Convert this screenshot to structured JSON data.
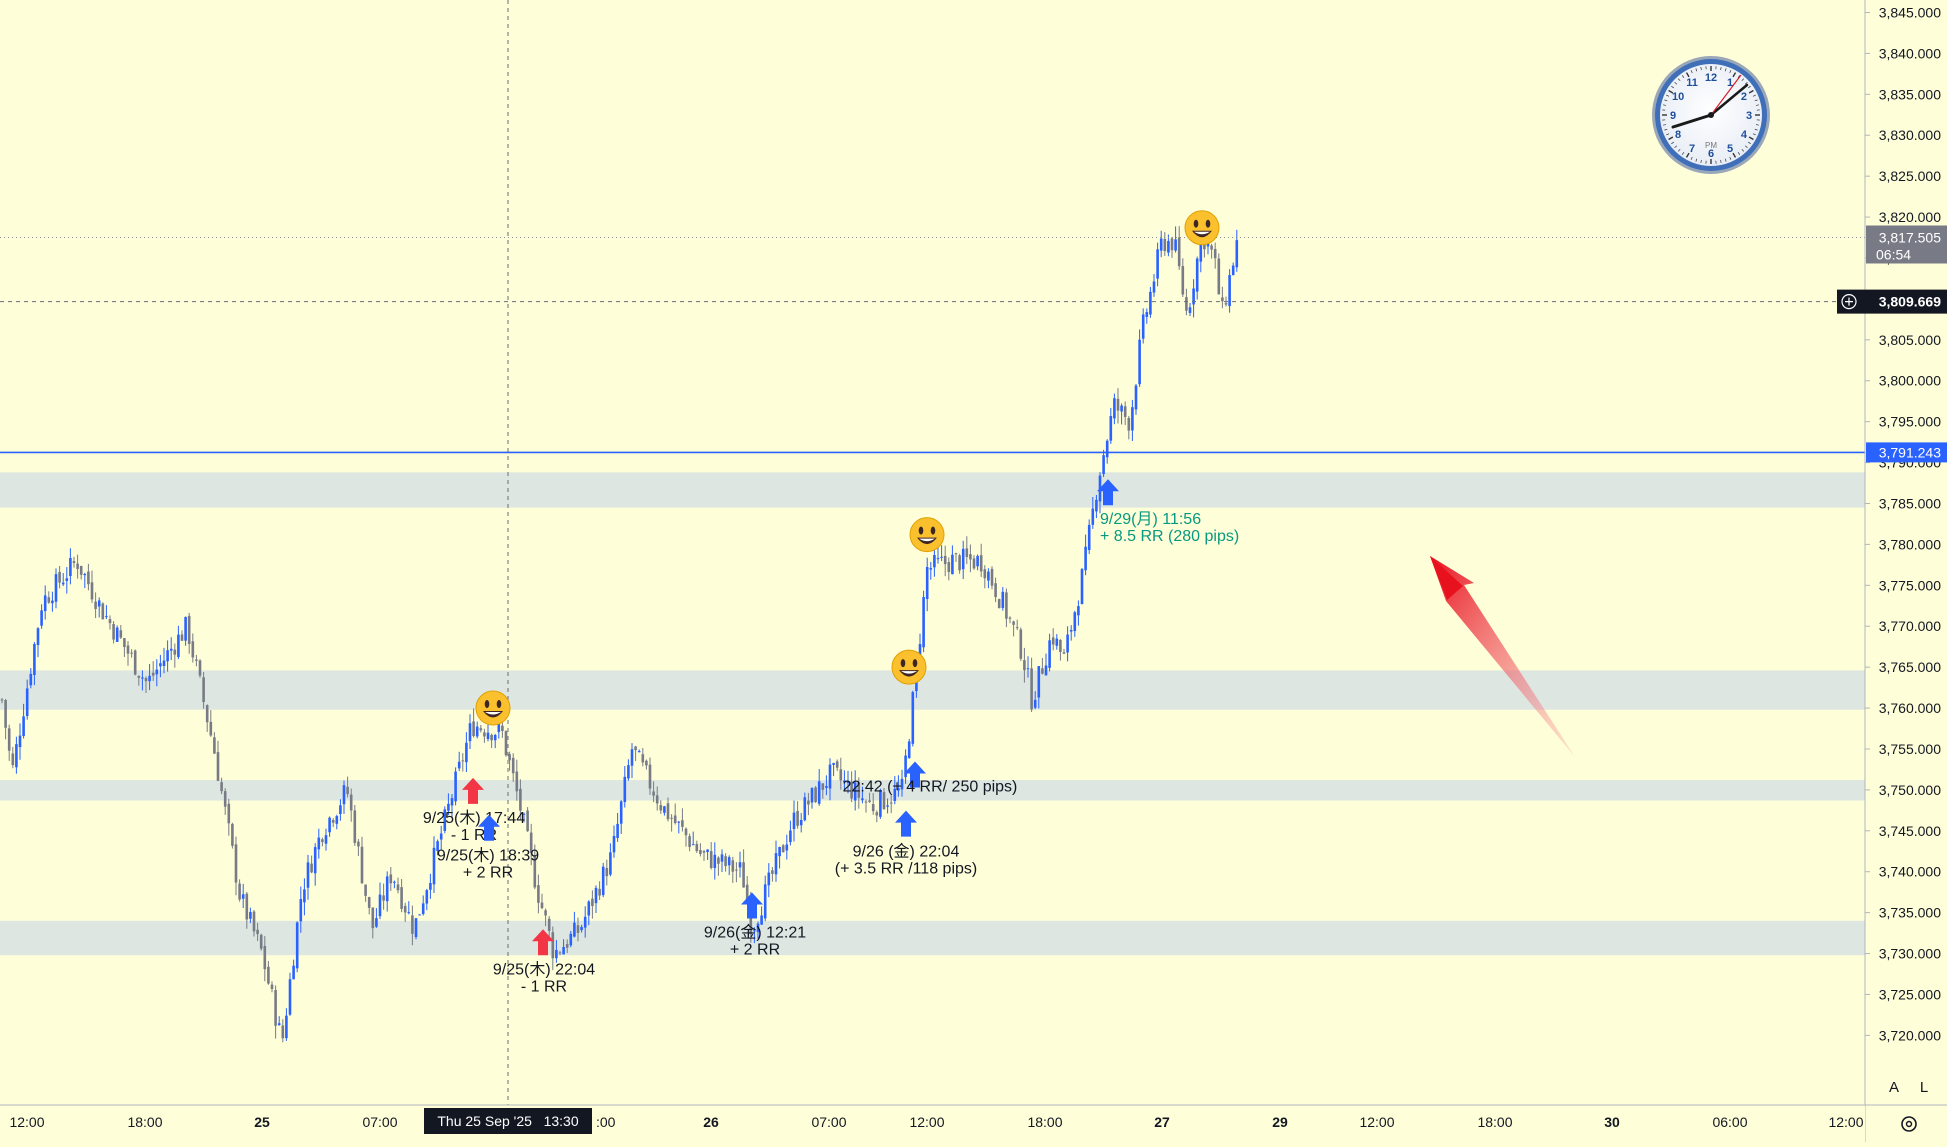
{
  "chart_data": {
    "type": "candlestick",
    "title": "",
    "y_axis": {
      "ylim": [
        3715.0,
        3846.0
      ],
      "tick_labels": [
        "3,845.000",
        "3,840.000",
        "3,835.000",
        "3,830.000",
        "3,825.000",
        "3,820.000",
        "3,815.000",
        "3,810.000",
        "3,805.000",
        "3,800.000",
        "3,795.000",
        "3,790.000",
        "3,785.000",
        "3,780.000",
        "3,775.000",
        "3,770.000",
        "3,765.000",
        "3,760.000",
        "3,755.000",
        "3,750.000",
        "3,745.000",
        "3,740.000",
        "3,735.000",
        "3,730.000",
        "3,725.000",
        "3,720.000"
      ],
      "tick_values": [
        3845,
        3840,
        3835,
        3830,
        3825,
        3820,
        3815,
        3810,
        3805,
        3800,
        3795,
        3790,
        3785,
        3780,
        3775,
        3770,
        3765,
        3760,
        3755,
        3750,
        3745,
        3740,
        3735,
        3730,
        3725,
        3720
      ]
    },
    "x_axis": {
      "tick_labels": [
        "12:00",
        "18:00",
        "25",
        "07:00",
        "13:30",
        "26",
        "07:00",
        "12:00",
        "18:00",
        "27",
        "29",
        "12:00",
        "18:00",
        "30",
        "06:00",
        "12:00"
      ],
      "crosshair_label": "Thu 25 Sep '25   13:30"
    },
    "price_labels": {
      "last_price": "3,817.505",
      "countdown": "06:54",
      "crosshair_price": "3,809.669",
      "line_price": "3,791.243"
    },
    "horizontal_line": {
      "price": 3791.243,
      "color": "#2962ff"
    },
    "zones": [
      {
        "from": 3784.5,
        "to": 3788.8
      },
      {
        "from": 3759.8,
        "to": 3764.6
      },
      {
        "from": 3748.7,
        "to": 3751.2
      },
      {
        "from": 3729.8,
        "to": 3734.0
      }
    ],
    "series": [
      {
        "name": "",
        "up_color": "#2962ff",
        "down_color": "#787b86",
        "anchors": [
          {
            "t": 0,
            "price": 3761.0
          },
          {
            "t": 10,
            "price": 3752.0
          },
          {
            "t": 40,
            "price": 3773.0
          },
          {
            "t": 75,
            "price": 3778.0
          },
          {
            "t": 100,
            "price": 3772.0
          },
          {
            "t": 145,
            "price": 3763.0
          },
          {
            "t": 185,
            "price": 3770.0
          },
          {
            "t": 212,
            "price": 3755.0
          },
          {
            "t": 238,
            "price": 3737.0
          },
          {
            "t": 260,
            "price": 3730.0
          },
          {
            "t": 280,
            "price": 3719.0
          },
          {
            "t": 300,
            "price": 3738.0
          },
          {
            "t": 320,
            "price": 3745.0
          },
          {
            "t": 345,
            "price": 3750.0
          },
          {
            "t": 370,
            "price": 3733.0
          },
          {
            "t": 390,
            "price": 3740.0
          },
          {
            "t": 412,
            "price": 3733.0
          },
          {
            "t": 440,
            "price": 3745.0
          },
          {
            "t": 470,
            "price": 3758.0
          },
          {
            "t": 500,
            "price": 3757.0
          },
          {
            "t": 518,
            "price": 3748.0
          },
          {
            "t": 535,
            "price": 3738.0
          },
          {
            "t": 552,
            "price": 3730.0
          },
          {
            "t": 578,
            "price": 3733.0
          },
          {
            "t": 610,
            "price": 3742.0
          },
          {
            "t": 630,
            "price": 3755.0
          },
          {
            "t": 660,
            "price": 3748.0
          },
          {
            "t": 700,
            "price": 3742.0
          },
          {
            "t": 740,
            "price": 3740.0
          },
          {
            "t": 750,
            "price": 3733.0
          },
          {
            "t": 790,
            "price": 3746.0
          },
          {
            "t": 830,
            "price": 3752.0
          },
          {
            "t": 870,
            "price": 3748.0
          },
          {
            "t": 900,
            "price": 3750.0
          },
          {
            "t": 912,
            "price": 3762.0
          },
          {
            "t": 925,
            "price": 3777.0
          },
          {
            "t": 950,
            "price": 3778.0
          },
          {
            "t": 980,
            "price": 3778.0
          },
          {
            "t": 1000,
            "price": 3773.0
          },
          {
            "t": 1020,
            "price": 3767.0
          },
          {
            "t": 1030,
            "price": 3761.0
          },
          {
            "t": 1050,
            "price": 3769.0
          },
          {
            "t": 1062,
            "price": 3766.0
          },
          {
            "t": 1082,
            "price": 3777.0
          },
          {
            "t": 1096,
            "price": 3788.0
          },
          {
            "t": 1112,
            "price": 3797.0
          },
          {
            "t": 1128,
            "price": 3795.0
          },
          {
            "t": 1140,
            "price": 3806.0
          },
          {
            "t": 1160,
            "price": 3817.0
          },
          {
            "t": 1172,
            "price": 3817.0
          },
          {
            "t": 1185,
            "price": 3808.0
          },
          {
            "t": 1200,
            "price": 3818.0
          },
          {
            "t": 1212,
            "price": 3815.0
          },
          {
            "t": 1220,
            "price": 3808.0
          },
          {
            "t": 1236,
            "price": 3817.5
          }
        ]
      }
    ],
    "annotations": [
      {
        "type": "arrow-down",
        "color": "#f23645",
        "t": 471,
        "price": 3750.0,
        "label": "9/25(木) 17:44\n- 1 RR"
      },
      {
        "type": "arrow-up",
        "color": "#2962ff",
        "t": 487,
        "price": 3745.5,
        "label": "9/25(木) 18:39\n+ 2 RR"
      },
      {
        "type": "arrow-down",
        "color": "#f23645",
        "t": 541,
        "price": 3731.5,
        "label": "9/25(木) 22:04\n- 1 RR"
      },
      {
        "type": "arrow-up",
        "color": "#2962ff",
        "t": 750,
        "price": 3736.0,
        "label": "9/26(金) 12:21\n+ 2 RR"
      },
      {
        "type": "arrow-up",
        "color": "#2962ff",
        "t": 913,
        "price": 3752.0,
        "label": "22:42  (+ 4 RR/ 250 pips)"
      },
      {
        "type": "arrow-up",
        "color": "#2962ff",
        "t": 904,
        "price": 3746.0,
        "label": "9/26 (金) 22:04\n(+ 3.5 RR /118 pips)"
      },
      {
        "type": "arrow-up",
        "color": "#2962ff",
        "t": 1106,
        "price": 3786.5,
        "label": "9/29(月) 11:56\n+ 8.5 RR (280 pips)",
        "label_color": "#089981"
      }
    ],
    "emoji_markers": [
      {
        "t": 491,
        "price": 3760.0
      },
      {
        "t": 925,
        "price": 3781.2
      },
      {
        "t": 907,
        "price": 3765.0
      },
      {
        "t": 1200,
        "price": 3818.7
      }
    ],
    "grid": false,
    "legend": "none"
  },
  "toolbar": {
    "auto_label": "A",
    "log_label": "L"
  },
  "clock": {
    "numerals": [
      "12",
      "1",
      "2",
      "3",
      "4",
      "5",
      "6",
      "7",
      "8",
      "9",
      "10",
      "11"
    ],
    "period": "PM"
  },
  "colors": {
    "background": "#fefed8",
    "zone": "#dde6e0",
    "up": "#2962ff",
    "down": "#787b86",
    "sell_arrow": "#f23645",
    "buy_arrow": "#2962ff",
    "highlight_text": "#089981",
    "big_arrow": "#f23645"
  },
  "icons": {
    "emoji": "grinning-face-icon",
    "crosshair": "crosshair-plus-icon",
    "settings": "settings-icon",
    "clock": "analog-clock-icon"
  }
}
